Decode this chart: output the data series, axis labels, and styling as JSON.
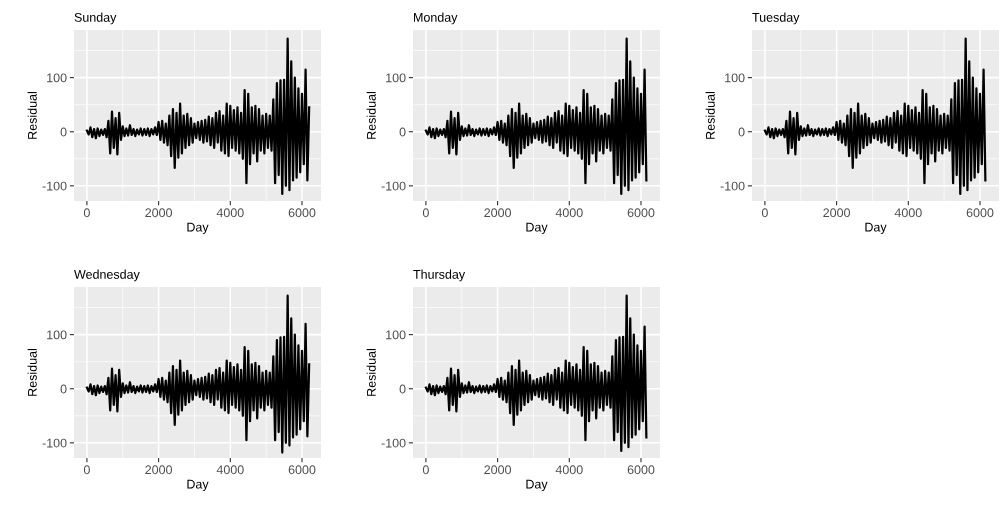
{
  "chart_data": [
    {
      "type": "line",
      "title": "Sunday",
      "xlabel": "Day",
      "ylabel": "Residual",
      "xlim": [
        -360,
        6530
      ],
      "ylim": [
        -128,
        188
      ],
      "xticks": [
        0,
        2000,
        4000,
        6000
      ],
      "yticks": [
        -100,
        0,
        100
      ],
      "grid": true,
      "line_style": "solid",
      "x": [
        0,
        50,
        100,
        150,
        200,
        250,
        300,
        350,
        400,
        450,
        500,
        550,
        600,
        650,
        700,
        750,
        800,
        850,
        900,
        950,
        1000,
        1050,
        1100,
        1150,
        1200,
        1250,
        1300,
        1350,
        1400,
        1450,
        1500,
        1550,
        1600,
        1650,
        1700,
        1750,
        1800,
        1850,
        1900,
        1950,
        2000,
        2050,
        2100,
        2150,
        2200,
        2250,
        2300,
        2350,
        2400,
        2450,
        2500,
        2550,
        2600,
        2650,
        2700,
        2750,
        2800,
        2850,
        2900,
        2950,
        3000,
        3050,
        3100,
        3150,
        3200,
        3250,
        3300,
        3350,
        3400,
        3450,
        3500,
        3550,
        3600,
        3650,
        3700,
        3750,
        3800,
        3850,
        3900,
        3950,
        4000,
        4050,
        4100,
        4150,
        4200,
        4250,
        4300,
        4350,
        4400,
        4450,
        4500,
        4550,
        4600,
        4650,
        4700,
        4750,
        4800,
        4850,
        4900,
        4950,
        5000,
        5050,
        5100,
        5150,
        5200,
        5250,
        5300,
        5350,
        5400,
        5450,
        5500,
        5550,
        5600,
        5650,
        5700,
        5750,
        5800,
        5850,
        5900,
        5950,
        6000,
        6050,
        6100,
        6150,
        6200
      ],
      "series": [
        {
          "color": "#000000",
          "values": [
            2,
            -5,
            8,
            -10,
            5,
            -12,
            6,
            -8,
            4,
            -6,
            5,
            -10,
            20,
            -40,
            37,
            -30,
            25,
            -42,
            35,
            -15,
            10,
            -8,
            6,
            -7,
            12,
            -6,
            5,
            -8,
            4,
            -5,
            6,
            -7,
            5,
            -6,
            6,
            -8,
            5,
            -5,
            8,
            -6,
            18,
            -15,
            20,
            -20,
            15,
            -25,
            30,
            -45,
            42,
            -67,
            35,
            -48,
            52,
            -40,
            30,
            -30,
            33,
            -25,
            25,
            -20,
            15,
            -12,
            18,
            -15,
            20,
            -20,
            22,
            -18,
            28,
            -25,
            25,
            -30,
            35,
            -20,
            38,
            -35,
            30,
            -40,
            52,
            -45,
            48,
            -30,
            40,
            -35,
            45,
            -40,
            35,
            -50,
            77,
            -95,
            70,
            -60,
            45,
            -40,
            48,
            -55,
            42,
            -35,
            30,
            -40,
            33,
            -30,
            30,
            -35,
            60,
            -95,
            90,
            -80,
            95,
            -115,
            96,
            -100,
            172,
            -108,
            130,
            -90,
            100,
            -85,
            80,
            -75,
            70,
            -60,
            115,
            -90,
            45
          ]
        }
      ]
    },
    {
      "type": "line",
      "title": "Monday",
      "xlabel": "Day",
      "ylabel": "Residual",
      "xlim": [
        -360,
        6530
      ],
      "ylim": [
        -128,
        188
      ],
      "xticks": [
        0,
        2000,
        4000,
        6000
      ],
      "yticks": [
        -100,
        0,
        100
      ],
      "grid": true,
      "line_style": "solid",
      "x": [
        0,
        50,
        100,
        150,
        200,
        250,
        300,
        350,
        400,
        450,
        500,
        550,
        600,
        650,
        700,
        750,
        800,
        850,
        900,
        950,
        1000,
        1050,
        1100,
        1150,
        1200,
        1250,
        1300,
        1350,
        1400,
        1450,
        1500,
        1550,
        1600,
        1650,
        1700,
        1750,
        1800,
        1850,
        1900,
        1950,
        2000,
        2050,
        2100,
        2150,
        2200,
        2250,
        2300,
        2350,
        2400,
        2450,
        2500,
        2550,
        2600,
        2650,
        2700,
        2750,
        2800,
        2850,
        2900,
        2950,
        3000,
        3050,
        3100,
        3150,
        3200,
        3250,
        3300,
        3350,
        3400,
        3450,
        3500,
        3550,
        3600,
        3650,
        3700,
        3750,
        3800,
        3850,
        3900,
        3950,
        4000,
        4050,
        4100,
        4150,
        4200,
        4250,
        4300,
        4350,
        4400,
        4450,
        4500,
        4550,
        4600,
        4650,
        4700,
        4750,
        4800,
        4850,
        4900,
        4950,
        5000,
        5050,
        5100,
        5150,
        5200,
        5250,
        5300,
        5350,
        5400,
        5450,
        5500,
        5550,
        5600,
        5650,
        5700,
        5750,
        5800,
        5850,
        5900,
        5950,
        6000,
        6050,
        6100,
        6150
      ],
      "series": [
        {
          "color": "#000000",
          "values": [
            2,
            -5,
            8,
            -10,
            5,
            -12,
            6,
            -8,
            4,
            -6,
            5,
            -10,
            20,
            -40,
            37,
            -30,
            25,
            -42,
            35,
            -15,
            10,
            -8,
            6,
            -7,
            12,
            -6,
            5,
            -8,
            4,
            -5,
            6,
            -7,
            5,
            -6,
            6,
            -8,
            5,
            -5,
            8,
            -6,
            18,
            -15,
            20,
            -20,
            15,
            -25,
            30,
            -45,
            42,
            -67,
            35,
            -48,
            52,
            -40,
            30,
            -30,
            33,
            -25,
            25,
            -20,
            15,
            -12,
            18,
            -15,
            20,
            -20,
            22,
            -18,
            28,
            -25,
            25,
            -30,
            35,
            -20,
            38,
            -35,
            30,
            -40,
            52,
            -45,
            48,
            -30,
            40,
            -35,
            45,
            -40,
            35,
            -50,
            77,
            -95,
            70,
            -60,
            45,
            -40,
            48,
            -55,
            42,
            -35,
            30,
            -40,
            33,
            -30,
            30,
            -35,
            60,
            -95,
            90,
            -80,
            95,
            -115,
            96,
            -100,
            172,
            -108,
            130,
            -90,
            100,
            -85,
            80,
            -75,
            70,
            -60,
            115,
            -90
          ]
        }
      ]
    },
    {
      "type": "line",
      "title": "Tuesday",
      "xlabel": "Day",
      "ylabel": "Residual",
      "xlim": [
        -360,
        6530
      ],
      "ylim": [
        -128,
        188
      ],
      "xticks": [
        0,
        2000,
        4000,
        6000
      ],
      "yticks": [
        -100,
        0,
        100
      ],
      "grid": true,
      "line_style": "solid",
      "x": [
        0,
        50,
        100,
        150,
        200,
        250,
        300,
        350,
        400,
        450,
        500,
        550,
        600,
        650,
        700,
        750,
        800,
        850,
        900,
        950,
        1000,
        1050,
        1100,
        1150,
        1200,
        1250,
        1300,
        1350,
        1400,
        1450,
        1500,
        1550,
        1600,
        1650,
        1700,
        1750,
        1800,
        1850,
        1900,
        1950,
        2000,
        2050,
        2100,
        2150,
        2200,
        2250,
        2300,
        2350,
        2400,
        2450,
        2500,
        2550,
        2600,
        2650,
        2700,
        2750,
        2800,
        2850,
        2900,
        2950,
        3000,
        3050,
        3100,
        3150,
        3200,
        3250,
        3300,
        3350,
        3400,
        3450,
        3500,
        3550,
        3600,
        3650,
        3700,
        3750,
        3800,
        3850,
        3900,
        3950,
        4000,
        4050,
        4100,
        4150,
        4200,
        4250,
        4300,
        4350,
        4400,
        4450,
        4500,
        4550,
        4600,
        4650,
        4700,
        4750,
        4800,
        4850,
        4900,
        4950,
        5000,
        5050,
        5100,
        5150,
        5200,
        5250,
        5300,
        5350,
        5400,
        5450,
        5500,
        5550,
        5600,
        5650,
        5700,
        5750,
        5800,
        5850,
        5900,
        5950,
        6000,
        6050,
        6100,
        6150
      ],
      "series": [
        {
          "color": "#000000",
          "values": [
            2,
            -5,
            8,
            -10,
            5,
            -12,
            6,
            -8,
            4,
            -6,
            5,
            -10,
            20,
            -40,
            37,
            -30,
            25,
            -42,
            35,
            -15,
            10,
            -8,
            6,
            -7,
            12,
            -6,
            5,
            -8,
            4,
            -5,
            6,
            -7,
            5,
            -6,
            6,
            -8,
            5,
            -5,
            8,
            -6,
            18,
            -15,
            20,
            -20,
            15,
            -25,
            30,
            -45,
            42,
            -67,
            35,
            -48,
            52,
            -40,
            30,
            -30,
            33,
            -25,
            25,
            -20,
            15,
            -12,
            18,
            -15,
            20,
            -20,
            22,
            -18,
            28,
            -25,
            25,
            -30,
            35,
            -20,
            38,
            -35,
            30,
            -40,
            52,
            -45,
            48,
            -30,
            40,
            -35,
            45,
            -40,
            35,
            -50,
            77,
            -95,
            70,
            -60,
            45,
            -40,
            48,
            -55,
            42,
            -35,
            30,
            -40,
            33,
            -30,
            30,
            -35,
            60,
            -95,
            90,
            -80,
            95,
            -115,
            96,
            -100,
            172,
            -108,
            130,
            -90,
            100,
            -85,
            80,
            -75,
            70,
            -60,
            115,
            -90
          ]
        }
      ]
    },
    {
      "type": "line",
      "title": "Wednesday",
      "xlabel": "Day",
      "ylabel": "Residual",
      "xlim": [
        -360,
        6530
      ],
      "ylim": [
        -128,
        188
      ],
      "xticks": [
        0,
        2000,
        4000,
        6000
      ],
      "yticks": [
        -100,
        0,
        100
      ],
      "grid": true,
      "line_style": "solid",
      "x": [
        0,
        50,
        100,
        150,
        200,
        250,
        300,
        350,
        400,
        450,
        500,
        550,
        600,
        650,
        700,
        750,
        800,
        850,
        900,
        950,
        1000,
        1050,
        1100,
        1150,
        1200,
        1250,
        1300,
        1350,
        1400,
        1450,
        1500,
        1550,
        1600,
        1650,
        1700,
        1750,
        1800,
        1850,
        1900,
        1950,
        2000,
        2050,
        2100,
        2150,
        2200,
        2250,
        2300,
        2350,
        2400,
        2450,
        2500,
        2550,
        2600,
        2650,
        2700,
        2750,
        2800,
        2850,
        2900,
        2950,
        3000,
        3050,
        3100,
        3150,
        3200,
        3250,
        3300,
        3350,
        3400,
        3450,
        3500,
        3550,
        3600,
        3650,
        3700,
        3750,
        3800,
        3850,
        3900,
        3950,
        4000,
        4050,
        4100,
        4150,
        4200,
        4250,
        4300,
        4350,
        4400,
        4450,
        4500,
        4550,
        4600,
        4650,
        4700,
        4750,
        4800,
        4850,
        4900,
        4950,
        5000,
        5050,
        5100,
        5150,
        5200,
        5250,
        5300,
        5350,
        5400,
        5450,
        5500,
        5550,
        5600,
        5650,
        5700,
        5750,
        5800,
        5850,
        5900,
        5950,
        6000,
        6050,
        6100,
        6150,
        6200
      ],
      "series": [
        {
          "color": "#000000",
          "values": [
            2,
            -5,
            8,
            -10,
            5,
            -12,
            6,
            -8,
            4,
            -6,
            5,
            -10,
            20,
            -40,
            37,
            -30,
            25,
            -42,
            35,
            -15,
            10,
            -8,
            6,
            -7,
            12,
            -6,
            5,
            -8,
            4,
            -5,
            6,
            -7,
            5,
            -6,
            6,
            -8,
            5,
            -5,
            8,
            -6,
            18,
            -15,
            20,
            -20,
            15,
            -25,
            30,
            -45,
            42,
            -67,
            35,
            -48,
            52,
            -40,
            30,
            -30,
            33,
            -25,
            25,
            -20,
            15,
            -12,
            18,
            -15,
            20,
            -20,
            22,
            -18,
            28,
            -25,
            25,
            -30,
            35,
            -20,
            38,
            -35,
            30,
            -40,
            52,
            -45,
            48,
            -30,
            40,
            -35,
            45,
            -40,
            35,
            -50,
            77,
            -95,
            70,
            -60,
            45,
            -40,
            48,
            -55,
            42,
            -35,
            30,
            -40,
            33,
            -30,
            30,
            -35,
            60,
            -95,
            90,
            -80,
            95,
            -118,
            96,
            -100,
            172,
            -105,
            130,
            -90,
            100,
            -85,
            80,
            -75,
            70,
            -60,
            120,
            -88,
            45
          ]
        }
      ]
    },
    {
      "type": "line",
      "title": "Thursday",
      "xlabel": "Day",
      "ylabel": "Residual",
      "xlim": [
        -360,
        6530
      ],
      "ylim": [
        -128,
        188
      ],
      "xticks": [
        0,
        2000,
        4000,
        6000
      ],
      "yticks": [
        -100,
        0,
        100
      ],
      "grid": true,
      "line_style": "solid",
      "x": [
        0,
        50,
        100,
        150,
        200,
        250,
        300,
        350,
        400,
        450,
        500,
        550,
        600,
        650,
        700,
        750,
        800,
        850,
        900,
        950,
        1000,
        1050,
        1100,
        1150,
        1200,
        1250,
        1300,
        1350,
        1400,
        1450,
        1500,
        1550,
        1600,
        1650,
        1700,
        1750,
        1800,
        1850,
        1900,
        1950,
        2000,
        2050,
        2100,
        2150,
        2200,
        2250,
        2300,
        2350,
        2400,
        2450,
        2500,
        2550,
        2600,
        2650,
        2700,
        2750,
        2800,
        2850,
        2900,
        2950,
        3000,
        3050,
        3100,
        3150,
        3200,
        3250,
        3300,
        3350,
        3400,
        3450,
        3500,
        3550,
        3600,
        3650,
        3700,
        3750,
        3800,
        3850,
        3900,
        3950,
        4000,
        4050,
        4100,
        4150,
        4200,
        4250,
        4300,
        4350,
        4400,
        4450,
        4500,
        4550,
        4600,
        4650,
        4700,
        4750,
        4800,
        4850,
        4900,
        4950,
        5000,
        5050,
        5100,
        5150,
        5200,
        5250,
        5300,
        5350,
        5400,
        5450,
        5500,
        5550,
        5600,
        5650,
        5700,
        5750,
        5800,
        5850,
        5900,
        5950,
        6000,
        6050,
        6100,
        6150
      ],
      "series": [
        {
          "color": "#000000",
          "values": [
            2,
            -5,
            8,
            -10,
            5,
            -12,
            6,
            -8,
            4,
            -6,
            5,
            -10,
            20,
            -40,
            37,
            -30,
            25,
            -42,
            35,
            -15,
            10,
            -8,
            6,
            -7,
            12,
            -6,
            5,
            -8,
            4,
            -5,
            6,
            -7,
            5,
            -6,
            6,
            -8,
            5,
            -5,
            8,
            -6,
            18,
            -15,
            20,
            -20,
            15,
            -25,
            30,
            -45,
            42,
            -67,
            35,
            -48,
            52,
            -40,
            30,
            -30,
            33,
            -25,
            25,
            -20,
            15,
            -12,
            18,
            -15,
            20,
            -20,
            22,
            -18,
            28,
            -25,
            25,
            -30,
            35,
            -20,
            38,
            -35,
            30,
            -40,
            52,
            -45,
            48,
            -30,
            40,
            -35,
            45,
            -40,
            35,
            -50,
            77,
            -95,
            70,
            -60,
            45,
            -40,
            48,
            -55,
            42,
            -35,
            30,
            -40,
            33,
            -30,
            30,
            -35,
            60,
            -95,
            90,
            -80,
            95,
            -115,
            96,
            -100,
            172,
            -108,
            130,
            -90,
            100,
            -85,
            80,
            -75,
            70,
            -60,
            115,
            -90
          ]
        }
      ]
    }
  ]
}
